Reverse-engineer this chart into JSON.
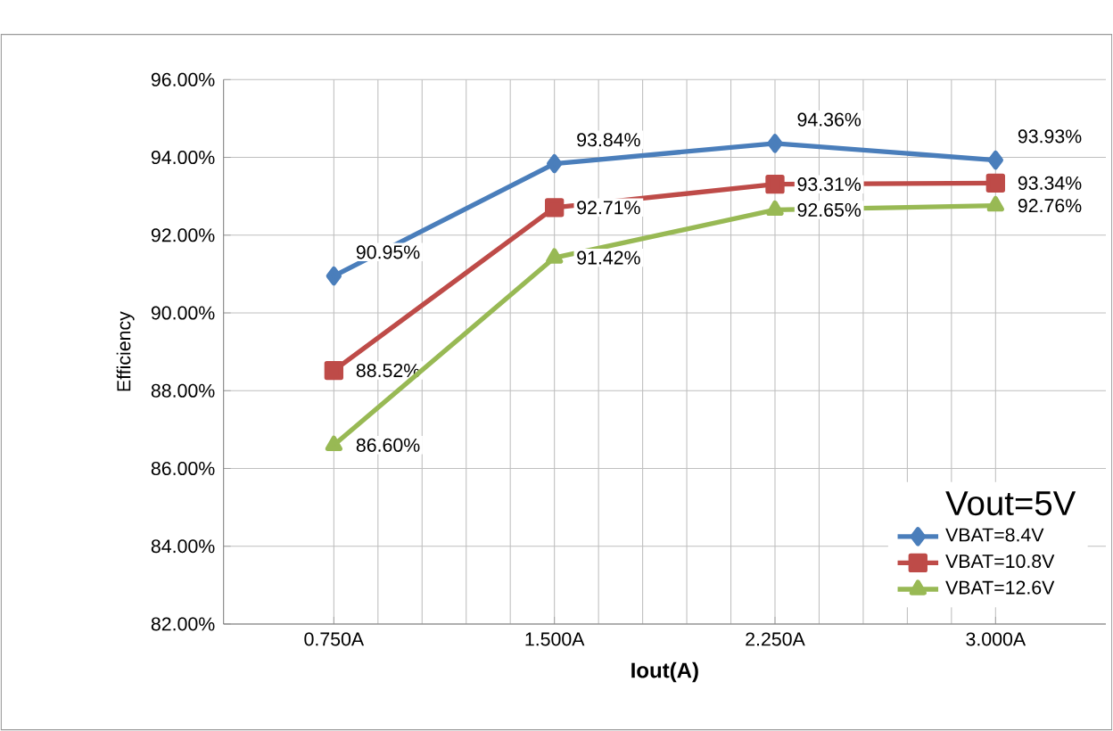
{
  "chart_data": {
    "type": "line",
    "xlabel": "Iout(A)",
    "ylabel": "Efficiency",
    "legend_title": "Vout=5V",
    "categories": [
      "0.750A",
      "1.500A",
      "2.250A",
      "3.000A"
    ],
    "series": [
      {
        "name": "VBAT=8.4V",
        "color": "#4a7ebb",
        "marker": "diamond",
        "values": [
          90.95,
          93.84,
          94.36,
          93.93
        ],
        "value_labels": [
          "90.95%",
          "93.84%",
          "94.36%",
          "93.93%"
        ]
      },
      {
        "name": "VBAT=10.8V",
        "color": "#be4b48",
        "marker": "square",
        "values": [
          88.52,
          92.71,
          93.31,
          93.34
        ],
        "value_labels": [
          "88.52%",
          "92.71%",
          "93.31%",
          "93.34%"
        ]
      },
      {
        "name": "VBAT=12.6V",
        "color": "#98b954",
        "marker": "triangle",
        "values": [
          86.6,
          91.42,
          92.65,
          92.76
        ],
        "value_labels": [
          "86.60%",
          "91.42%",
          "92.65%",
          "92.76%"
        ]
      }
    ],
    "ylim": [
      82,
      96
    ],
    "yticks": [
      {
        "value": 82,
        "label": "82.00%"
      },
      {
        "value": 84,
        "label": "84.00%"
      },
      {
        "value": 86,
        "label": "86.00%"
      },
      {
        "value": 88,
        "label": "88.00%"
      },
      {
        "value": 90,
        "label": "90.00%"
      },
      {
        "value": 92,
        "label": "92.00%"
      },
      {
        "value": 94,
        "label": "94.00%"
      },
      {
        "value": 96,
        "label": "96.00%"
      }
    ],
    "grid": true,
    "legend": "bottom right",
    "line_style": "solid"
  }
}
